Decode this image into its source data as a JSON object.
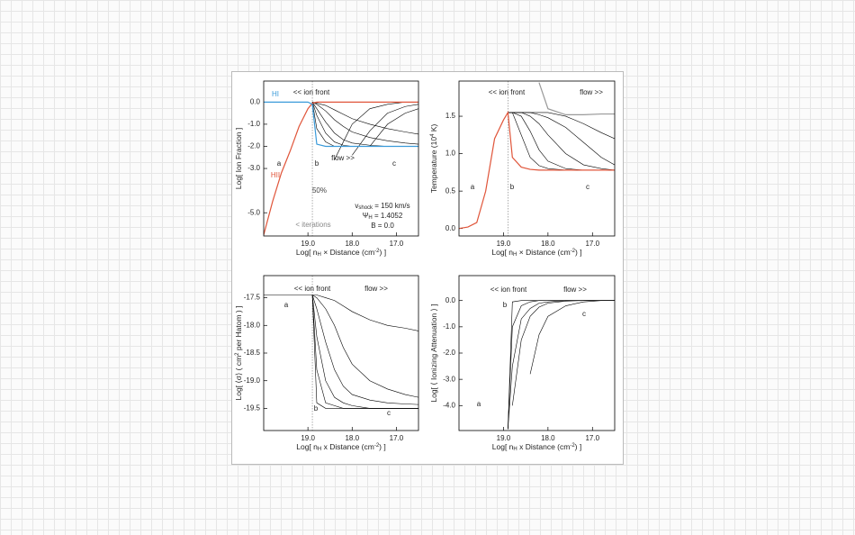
{
  "chart_data": [
    {
      "type": "line",
      "xlabel": [
        {
          "text": "Log[ n"
        },
        {
          "text": "H",
          "sub": true
        },
        {
          "text": " × Distance (cm"
        },
        {
          "text": "-2",
          "sup": true
        },
        {
          "text": ") ]"
        }
      ],
      "ylabel": [
        {
          "text": "Log[ Ion Fraction ]"
        }
      ],
      "x": [
        20.0,
        19.8,
        19.6,
        19.4,
        19.2,
        19.0,
        18.9,
        18.8,
        18.6,
        18.4,
        18.2,
        18.0,
        17.6,
        17.2,
        16.8,
        16.5
      ],
      "xlim": [
        20.0,
        16.5
      ],
      "ylim": [
        -6.05,
        0.95
      ],
      "xticks": [
        {
          "value": 19,
          "label": "19.0"
        },
        {
          "value": 18,
          "label": "18.0"
        },
        {
          "value": 17,
          "label": "17.0"
        }
      ],
      "yticks": [
        {
          "value": 0,
          "label": "0.0"
        },
        {
          "value": -1,
          "label": "-1.0"
        },
        {
          "value": -2,
          "label": "-2.0"
        },
        {
          "value": -3,
          "label": "-3.0"
        },
        {
          "value": -5,
          "label": "-5.0"
        }
      ],
      "marker_x": 18.9,
      "series": [
        {
          "color": "#000000",
          "values": [
            null,
            null,
            null,
            null,
            null,
            null,
            0,
            -1.2,
            -1.8,
            -2.0,
            -2.0,
            -2.0,
            -2.0,
            -2.0,
            -2.0,
            -2.0
          ]
        },
        {
          "color": "#000000",
          "values": [
            null,
            null,
            null,
            null,
            null,
            null,
            0,
            -0.6,
            -1.4,
            -1.8,
            -1.95,
            -2.0,
            -2.0,
            -2.0,
            -2.0,
            -2.0
          ]
        },
        {
          "color": "#000000",
          "values": [
            null,
            null,
            null,
            null,
            null,
            null,
            0,
            -0.3,
            -0.9,
            -1.4,
            -1.7,
            -1.85,
            -1.95,
            -2.0,
            -2.0,
            -2.0
          ]
        },
        {
          "color": "#000000",
          "values": [
            null,
            null,
            null,
            null,
            null,
            null,
            0,
            -0.1,
            -0.4,
            -0.8,
            -1.1,
            -1.35,
            -1.6,
            -1.75,
            -1.85,
            -1.9
          ]
        },
        {
          "color": "#000000",
          "values": [
            null,
            null,
            null,
            null,
            null,
            null,
            0,
            -0.05,
            -0.15,
            -0.35,
            -0.55,
            -0.75,
            -1.0,
            -1.2,
            -1.35,
            -1.45
          ]
        },
        {
          "color": "#000000",
          "values": [
            null,
            null,
            null,
            null,
            null,
            null,
            null,
            null,
            null,
            -2.6,
            -1.8,
            -1.0,
            -0.3,
            -0.1,
            0,
            0
          ]
        },
        {
          "color": "#000000",
          "values": [
            null,
            null,
            null,
            null,
            null,
            null,
            null,
            null,
            null,
            null,
            null,
            -2.4,
            -1.3,
            -0.5,
            -0.2,
            -0.1
          ]
        },
        {
          "color": "#000000",
          "values": [
            null,
            null,
            null,
            null,
            null,
            null,
            null,
            null,
            null,
            null,
            null,
            null,
            -2.0,
            -1.0,
            -0.5,
            -0.3
          ]
        },
        {
          "name": "HII",
          "color": "#e0553a",
          "values": [
            -6.0,
            -4.5,
            -3.2,
            -2.2,
            -1.1,
            -0.3,
            -0.05,
            0,
            0,
            0,
            0,
            0,
            0,
            0,
            0,
            0
          ]
        },
        {
          "name": "HI",
          "color": "#3a9ad9",
          "values": [
            0,
            0,
            0,
            0,
            0,
            0,
            -0.1,
            -1.9,
            -2.0,
            -2.0,
            -2.0,
            -2.0,
            -2.0,
            -2.0,
            -2.0,
            -2.0
          ]
        }
      ],
      "annotations": [
        "<< ion front",
        "flow >>",
        "a",
        "b",
        "c",
        "50%",
        "< iterations",
        [
          {
            "text": "v"
          },
          {
            "text": "shock",
            "sub": true
          },
          {
            "text": " = 150 km/s"
          }
        ],
        [
          {
            "text": "Ψ"
          },
          {
            "text": "H",
            "sub": true
          },
          {
            "text": " = 1.4052"
          }
        ],
        "B = 0.0"
      ]
    },
    {
      "type": "line",
      "xlabel": [
        {
          "text": "Log[ n"
        },
        {
          "text": "H",
          "sub": true
        },
        {
          "text": " × Distance (cm"
        },
        {
          "text": "-2",
          "sup": true
        },
        {
          "text": ") ]"
        }
      ],
      "ylabel": [
        {
          "text": "Temperature (10"
        },
        {
          "text": "4",
          "sup": true
        },
        {
          "text": " K)"
        }
      ],
      "x": [
        20.0,
        19.8,
        19.6,
        19.4,
        19.2,
        19.0,
        18.9,
        18.8,
        18.6,
        18.4,
        18.2,
        18.0,
        17.6,
        17.2,
        16.8,
        16.5
      ],
      "xlim": [
        20.0,
        16.5
      ],
      "ylim": [
        -0.1,
        1.97
      ],
      "xticks": [
        {
          "value": 19,
          "label": "19.0"
        },
        {
          "value": 18,
          "label": "18.0"
        },
        {
          "value": 17,
          "label": "17.0"
        }
      ],
      "yticks": [
        {
          "value": 0,
          "label": "0.0"
        },
        0.5,
        {
          "value": 1,
          "label": "1.0"
        },
        1.5
      ],
      "marker_x": 18.9,
      "series": [
        {
          "color": "#000000",
          "values": [
            null,
            null,
            null,
            null,
            null,
            null,
            1.55,
            1.55,
            1.25,
            0.95,
            0.84,
            0.8,
            0.78,
            0.78,
            0.78,
            0.78
          ]
        },
        {
          "color": "#000000",
          "values": [
            null,
            null,
            null,
            null,
            null,
            null,
            1.55,
            1.55,
            1.5,
            1.3,
            1.05,
            0.9,
            0.8,
            0.78,
            0.78,
            0.78
          ]
        },
        {
          "color": "#000000",
          "values": [
            null,
            null,
            null,
            null,
            null,
            null,
            1.55,
            1.55,
            1.55,
            1.5,
            1.4,
            1.25,
            1.0,
            0.85,
            0.8,
            0.78
          ]
        },
        {
          "color": "#000000",
          "values": [
            null,
            null,
            null,
            null,
            null,
            null,
            1.55,
            1.55,
            1.55,
            1.55,
            1.52,
            1.48,
            1.35,
            1.15,
            0.95,
            0.85
          ]
        },
        {
          "color": "#000000",
          "values": [
            null,
            null,
            null,
            null,
            null,
            null,
            1.55,
            1.55,
            1.55,
            1.55,
            1.55,
            1.55,
            1.5,
            1.4,
            1.28,
            1.2
          ]
        },
        {
          "color": "#999999",
          "values": [
            null,
            null,
            null,
            null,
            null,
            null,
            null,
            null,
            null,
            null,
            1.95,
            1.6,
            1.52,
            1.52,
            1.53,
            1.53
          ]
        },
        {
          "color": "#e0553a",
          "values": [
            0.0,
            0.02,
            0.08,
            0.5,
            1.2,
            1.45,
            1.55,
            0.95,
            0.82,
            0.79,
            0.78,
            0.78,
            0.78,
            0.78,
            0.78,
            0.78
          ]
        }
      ],
      "annotations": [
        "<< ion front",
        "flow >>",
        "a",
        "b",
        "c"
      ]
    },
    {
      "type": "line",
      "xlabel": [
        {
          "text": "Log[ n"
        },
        {
          "text": "H",
          "sub": true
        },
        {
          "text": " x Distance (cm"
        },
        {
          "text": "-2",
          "sup": true
        },
        {
          "text": ") ]"
        }
      ],
      "ylabel": [
        {
          "text": "Log[ ⟨σ⟩ ( cm"
        },
        {
          "text": "2",
          "sup": true
        },
        {
          "text": " per Hatom ) ]"
        }
      ],
      "x": [
        20.0,
        19.8,
        19.6,
        19.4,
        19.2,
        19.0,
        18.9,
        18.8,
        18.6,
        18.4,
        18.2,
        18.0,
        17.6,
        17.2,
        16.8,
        16.5
      ],
      "xlim": [
        20.0,
        16.5
      ],
      "ylim": [
        -19.9,
        -17.1
      ],
      "xticks": [
        {
          "value": 19,
          "label": "19.0"
        },
        {
          "value": 18,
          "label": "18.0"
        },
        {
          "value": 17,
          "label": "17.0"
        }
      ],
      "yticks": [
        -17.5,
        {
          "value": -18,
          "label": "-18.0"
        },
        -18.5,
        {
          "value": -19,
          "label": "-19.0"
        },
        -19.5
      ],
      "marker_x": 18.9,
      "series": [
        {
          "color": "#000000",
          "values": [
            -17.45,
            -17.45,
            -17.45,
            -17.45,
            -17.45,
            -17.45,
            -17.45,
            -19.4,
            -19.5,
            -19.5,
            -19.5,
            -19.5,
            -19.5,
            -19.5,
            -19.5,
            -19.5
          ]
        },
        {
          "color": "#000000",
          "values": [
            null,
            null,
            null,
            null,
            null,
            null,
            -17.45,
            -18.8,
            -19.4,
            -19.45,
            -19.5,
            -19.5,
            -19.5,
            -19.5,
            -19.5,
            -19.5
          ]
        },
        {
          "color": "#000000",
          "values": [
            null,
            null,
            null,
            null,
            null,
            null,
            -17.45,
            -18.2,
            -19.0,
            -19.3,
            -19.4,
            -19.45,
            -19.5,
            -19.5,
            -19.5,
            -19.5
          ]
        },
        {
          "color": "#000000",
          "values": [
            null,
            null,
            null,
            null,
            null,
            null,
            -17.45,
            -17.7,
            -18.3,
            -18.8,
            -19.1,
            -19.25,
            -19.35,
            -19.4,
            -19.42,
            -19.43
          ]
        },
        {
          "color": "#000000",
          "values": [
            null,
            null,
            null,
            null,
            null,
            null,
            -17.45,
            -17.5,
            -17.7,
            -18.0,
            -18.4,
            -18.7,
            -19.0,
            -19.15,
            -19.25,
            -19.3
          ]
        },
        {
          "color": "#000000",
          "values": [
            null,
            null,
            null,
            null,
            null,
            null,
            -17.45,
            -17.45,
            -17.5,
            -17.55,
            -17.65,
            -17.75,
            -17.9,
            -18.0,
            -18.05,
            -18.1
          ]
        }
      ],
      "annotations": [
        "<< ion front",
        "flow >>",
        "a",
        "b",
        "c"
      ]
    },
    {
      "type": "line",
      "xlabel": [
        {
          "text": "Log[ n"
        },
        {
          "text": "H",
          "sub": true
        },
        {
          "text": " x Distance (cm"
        },
        {
          "text": "-2",
          "sup": true
        },
        {
          "text": ") ]"
        }
      ],
      "ylabel": [
        {
          "text": "Log[ ⟨ Ionizing Attenuation ⟩ ]"
        }
      ],
      "x": [
        20.0,
        19.8,
        19.6,
        19.4,
        19.2,
        19.0,
        18.9,
        18.8,
        18.6,
        18.4,
        18.2,
        18.0,
        17.6,
        17.2,
        16.8,
        16.5
      ],
      "xlim": [
        20.0,
        16.5
      ],
      "ylim": [
        -4.95,
        0.95
      ],
      "xticks": [
        {
          "value": 19,
          "label": "19.0"
        },
        {
          "value": 18,
          "label": "18.0"
        },
        {
          "value": 17,
          "label": "17.0"
        }
      ],
      "yticks": [
        {
          "value": 0,
          "label": "0.0"
        },
        {
          "value": -1,
          "label": "-1.0"
        },
        {
          "value": -2,
          "label": "-2.0"
        },
        {
          "value": -3,
          "label": "-3.0"
        },
        {
          "value": -4,
          "label": "-4.0"
        }
      ],
      "series": [
        {
          "color": "#000000",
          "values": [
            null,
            null,
            null,
            null,
            null,
            null,
            -4.9,
            -0.05,
            0,
            0,
            0,
            0,
            0,
            0,
            0,
            0
          ]
        },
        {
          "color": "#000000",
          "values": [
            null,
            null,
            null,
            null,
            null,
            null,
            -4.9,
            -1.0,
            -0.2,
            -0.05,
            0,
            0,
            0,
            0,
            0,
            0
          ]
        },
        {
          "color": "#000000",
          "values": [
            null,
            null,
            null,
            null,
            null,
            null,
            -4.9,
            -2.5,
            -0.7,
            -0.3,
            -0.1,
            -0.05,
            0,
            0,
            0,
            0
          ]
        },
        {
          "color": "#000000",
          "values": [
            null,
            null,
            null,
            null,
            null,
            null,
            null,
            -4.0,
            -1.5,
            -0.6,
            -0.25,
            -0.1,
            -0.02,
            0,
            0,
            0
          ]
        },
        {
          "color": "#000000",
          "values": [
            null,
            null,
            null,
            null,
            null,
            null,
            null,
            null,
            null,
            -2.8,
            -1.3,
            -0.6,
            -0.2,
            -0.05,
            0,
            0
          ]
        }
      ],
      "annotations": [
        "<< ion front",
        "flow >>",
        "b",
        "c",
        "a"
      ]
    }
  ]
}
